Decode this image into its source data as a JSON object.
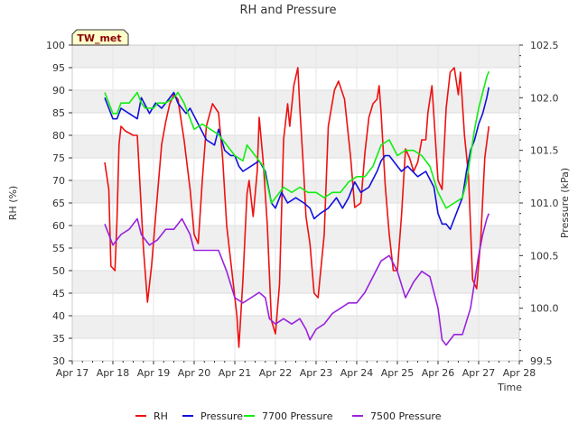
{
  "chart_data": {
    "type": "line",
    "title": "RH and Pressure",
    "badge": "TW_met",
    "xlabel": "Time",
    "ylabel_left": "RH (%)",
    "ylabel_right": "Pressure (kPa)",
    "x_ticks": [
      "Apr 17",
      "Apr 18",
      "Apr 19",
      "Apr 20",
      "Apr 21",
      "Apr 22",
      "Apr 23",
      "Apr 24",
      "Apr 25",
      "Apr 26",
      "Apr 27",
      "Apr 28"
    ],
    "y_left_ticks": [
      "30",
      "35",
      "40",
      "45",
      "50",
      "55",
      "60",
      "65",
      "70",
      "75",
      "80",
      "85",
      "90",
      "95",
      "100"
    ],
    "y_right_ticks": [
      "99.5",
      "100.0",
      "100.5",
      "101.0",
      "101.5",
      "102.0",
      "102.5"
    ],
    "xlim": [
      0,
      11
    ],
    "ylim_left": [
      30,
      100
    ],
    "ylim_right": [
      99.5,
      102.5
    ],
    "grid": true,
    "legend_position": "bottom-center",
    "series": [
      {
        "name": "RH",
        "axis": "left",
        "color": "#ee1111",
        "points": [
          [
            0.8,
            74
          ],
          [
            0.9,
            68
          ],
          [
            0.95,
            51
          ],
          [
            1.05,
            50
          ],
          [
            1.1,
            61
          ],
          [
            1.15,
            78
          ],
          [
            1.2,
            82
          ],
          [
            1.3,
            81
          ],
          [
            1.5,
            80
          ],
          [
            1.6,
            80
          ],
          [
            1.75,
            55
          ],
          [
            1.85,
            43
          ],
          [
            1.95,
            51
          ],
          [
            2.05,
            62
          ],
          [
            2.2,
            78
          ],
          [
            2.3,
            83
          ],
          [
            2.4,
            87
          ],
          [
            2.5,
            89
          ],
          [
            2.6,
            88
          ],
          [
            2.75,
            79
          ],
          [
            2.9,
            68
          ],
          [
            3.0,
            58
          ],
          [
            3.1,
            56
          ],
          [
            3.2,
            70
          ],
          [
            3.3,
            82
          ],
          [
            3.45,
            87
          ],
          [
            3.6,
            85
          ],
          [
            3.7,
            75
          ],
          [
            3.8,
            60
          ],
          [
            3.95,
            48
          ],
          [
            4.05,
            40
          ],
          [
            4.1,
            33
          ],
          [
            4.2,
            48
          ],
          [
            4.3,
            67
          ],
          [
            4.35,
            70
          ],
          [
            4.45,
            62
          ],
          [
            4.55,
            72
          ],
          [
            4.6,
            84
          ],
          [
            4.7,
            74
          ],
          [
            4.8,
            60
          ],
          [
            4.9,
            39
          ],
          [
            5.0,
            36
          ],
          [
            5.1,
            47
          ],
          [
            5.2,
            79
          ],
          [
            5.3,
            87
          ],
          [
            5.35,
            82
          ],
          [
            5.45,
            91
          ],
          [
            5.55,
            95
          ],
          [
            5.6,
            86
          ],
          [
            5.7,
            71
          ],
          [
            5.75,
            62
          ],
          [
            5.85,
            56
          ],
          [
            5.95,
            45
          ],
          [
            6.05,
            44
          ],
          [
            6.2,
            58
          ],
          [
            6.3,
            82
          ],
          [
            6.45,
            90
          ],
          [
            6.55,
            92
          ],
          [
            6.7,
            88
          ],
          [
            6.85,
            75
          ],
          [
            6.95,
            64
          ],
          [
            7.1,
            65
          ],
          [
            7.2,
            76
          ],
          [
            7.3,
            84
          ],
          [
            7.4,
            87
          ],
          [
            7.5,
            88
          ],
          [
            7.55,
            91
          ],
          [
            7.6,
            85
          ],
          [
            7.7,
            69
          ],
          [
            7.8,
            58
          ],
          [
            7.9,
            50
          ],
          [
            8.0,
            50
          ],
          [
            8.1,
            62
          ],
          [
            8.2,
            77
          ],
          [
            8.3,
            75
          ],
          [
            8.4,
            72
          ],
          [
            8.5,
            74
          ],
          [
            8.6,
            79
          ],
          [
            8.7,
            79
          ],
          [
            8.75,
            85
          ],
          [
            8.85,
            91
          ],
          [
            9.0,
            70
          ],
          [
            9.1,
            68
          ],
          [
            9.2,
            86
          ],
          [
            9.3,
            94
          ],
          [
            9.4,
            95
          ],
          [
            9.5,
            89
          ],
          [
            9.55,
            94
          ],
          [
            9.65,
            80
          ],
          [
            9.75,
            71
          ],
          [
            9.85,
            48
          ],
          [
            9.95,
            46
          ],
          [
            10.05,
            57
          ],
          [
            10.15,
            75
          ],
          [
            10.25,
            82
          ]
        ]
      },
      {
        "name": "Pressure",
        "axis": "right",
        "color": "#1111dd",
        "points": [
          [
            0.8,
            102.0
          ],
          [
            0.9,
            101.9
          ],
          [
            1.0,
            101.8
          ],
          [
            1.1,
            101.8
          ],
          [
            1.2,
            101.9
          ],
          [
            1.4,
            101.85
          ],
          [
            1.6,
            101.8
          ],
          [
            1.7,
            102.0
          ],
          [
            1.9,
            101.85
          ],
          [
            2.05,
            101.95
          ],
          [
            2.2,
            101.9
          ],
          [
            2.3,
            101.95
          ],
          [
            2.5,
            102.05
          ],
          [
            2.6,
            101.95
          ],
          [
            2.8,
            101.85
          ],
          [
            2.9,
            101.9
          ],
          [
            3.1,
            101.75
          ],
          [
            3.3,
            101.6
          ],
          [
            3.5,
            101.55
          ],
          [
            3.6,
            101.7
          ],
          [
            3.75,
            101.5
          ],
          [
            3.9,
            101.45
          ],
          [
            4.0,
            101.45
          ],
          [
            4.1,
            101.35
          ],
          [
            4.2,
            101.3
          ],
          [
            4.4,
            101.35
          ],
          [
            4.6,
            101.4
          ],
          [
            4.75,
            101.3
          ],
          [
            4.9,
            101.0
          ],
          [
            5.0,
            100.95
          ],
          [
            5.15,
            101.1
          ],
          [
            5.3,
            101.0
          ],
          [
            5.5,
            101.05
          ],
          [
            5.7,
            101.0
          ],
          [
            5.85,
            100.95
          ],
          [
            5.95,
            100.85
          ],
          [
            6.1,
            100.9
          ],
          [
            6.3,
            100.95
          ],
          [
            6.5,
            101.05
          ],
          [
            6.65,
            100.95
          ],
          [
            6.8,
            101.05
          ],
          [
            6.95,
            101.2
          ],
          [
            7.1,
            101.1
          ],
          [
            7.3,
            101.15
          ],
          [
            7.5,
            101.3
          ],
          [
            7.6,
            101.4
          ],
          [
            7.7,
            101.45
          ],
          [
            7.8,
            101.45
          ],
          [
            8.0,
            101.35
          ],
          [
            8.1,
            101.3
          ],
          [
            8.25,
            101.35
          ],
          [
            8.5,
            101.25
          ],
          [
            8.7,
            101.3
          ],
          [
            8.9,
            101.15
          ],
          [
            9.0,
            100.9
          ],
          [
            9.1,
            100.8
          ],
          [
            9.2,
            100.8
          ],
          [
            9.3,
            100.75
          ],
          [
            9.4,
            100.85
          ],
          [
            9.5,
            100.95
          ],
          [
            9.6,
            101.05
          ],
          [
            9.7,
            101.3
          ],
          [
            9.8,
            101.5
          ],
          [
            9.9,
            101.6
          ],
          [
            10.0,
            101.75
          ],
          [
            10.1,
            101.85
          ],
          [
            10.2,
            102.0
          ],
          [
            10.25,
            102.1
          ]
        ]
      },
      {
        "name": "7700 Pressure",
        "axis": "right",
        "color": "#11ee11",
        "points": [
          [
            0.8,
            102.05
          ],
          [
            0.9,
            101.95
          ],
          [
            1.0,
            101.85
          ],
          [
            1.1,
            101.85
          ],
          [
            1.2,
            101.95
          ],
          [
            1.4,
            101.95
          ],
          [
            1.6,
            102.05
          ],
          [
            1.7,
            101.95
          ],
          [
            1.8,
            101.9
          ],
          [
            2.0,
            101.9
          ],
          [
            2.1,
            101.95
          ],
          [
            2.3,
            101.95
          ],
          [
            2.5,
            102.0
          ],
          [
            2.6,
            102.05
          ],
          [
            2.75,
            101.95
          ],
          [
            2.85,
            101.85
          ],
          [
            3.0,
            101.7
          ],
          [
            3.2,
            101.75
          ],
          [
            3.4,
            101.7
          ],
          [
            3.6,
            101.65
          ],
          [
            3.8,
            101.55
          ],
          [
            4.0,
            101.45
          ],
          [
            4.2,
            101.4
          ],
          [
            4.3,
            101.55
          ],
          [
            4.5,
            101.45
          ],
          [
            4.7,
            101.35
          ],
          [
            4.9,
            101.0
          ],
          [
            5.0,
            101.05
          ],
          [
            5.2,
            101.15
          ],
          [
            5.4,
            101.1
          ],
          [
            5.6,
            101.15
          ],
          [
            5.8,
            101.1
          ],
          [
            6.0,
            101.1
          ],
          [
            6.2,
            101.05
          ],
          [
            6.4,
            101.1
          ],
          [
            6.6,
            101.1
          ],
          [
            6.8,
            101.2
          ],
          [
            7.0,
            101.25
          ],
          [
            7.2,
            101.25
          ],
          [
            7.4,
            101.35
          ],
          [
            7.6,
            101.55
          ],
          [
            7.8,
            101.6
          ],
          [
            8.0,
            101.45
          ],
          [
            8.2,
            101.5
          ],
          [
            8.4,
            101.5
          ],
          [
            8.6,
            101.45
          ],
          [
            8.8,
            101.35
          ],
          [
            9.0,
            101.1
          ],
          [
            9.2,
            100.95
          ],
          [
            9.4,
            101.0
          ],
          [
            9.6,
            101.05
          ],
          [
            9.7,
            101.2
          ],
          [
            9.8,
            101.45
          ],
          [
            9.9,
            101.7
          ],
          [
            10.0,
            101.9
          ],
          [
            10.1,
            102.05
          ],
          [
            10.2,
            102.2
          ],
          [
            10.25,
            102.25
          ]
        ]
      },
      {
        "name": "7500 Pressure",
        "axis": "right",
        "color": "#9922dd",
        "points": [
          [
            0.8,
            100.8
          ],
          [
            0.9,
            100.7
          ],
          [
            1.0,
            100.6
          ],
          [
            1.1,
            100.65
          ],
          [
            1.2,
            100.7
          ],
          [
            1.4,
            100.75
          ],
          [
            1.6,
            100.85
          ],
          [
            1.7,
            100.7
          ],
          [
            1.9,
            100.6
          ],
          [
            2.1,
            100.65
          ],
          [
            2.3,
            100.75
          ],
          [
            2.5,
            100.75
          ],
          [
            2.7,
            100.85
          ],
          [
            2.9,
            100.7
          ],
          [
            3.0,
            100.55
          ],
          [
            3.2,
            100.55
          ],
          [
            3.4,
            100.55
          ],
          [
            3.6,
            100.55
          ],
          [
            3.8,
            100.35
          ],
          [
            4.0,
            100.1
          ],
          [
            4.2,
            100.05
          ],
          [
            4.4,
            100.1
          ],
          [
            4.6,
            100.15
          ],
          [
            4.75,
            100.1
          ],
          [
            4.85,
            99.9
          ],
          [
            5.0,
            99.85
          ],
          [
            5.2,
            99.9
          ],
          [
            5.4,
            99.85
          ],
          [
            5.6,
            99.9
          ],
          [
            5.75,
            99.8
          ],
          [
            5.85,
            99.7
          ],
          [
            6.0,
            99.8
          ],
          [
            6.2,
            99.85
          ],
          [
            6.4,
            99.95
          ],
          [
            6.6,
            100.0
          ],
          [
            6.8,
            100.05
          ],
          [
            7.0,
            100.05
          ],
          [
            7.2,
            100.15
          ],
          [
            7.4,
            100.3
          ],
          [
            7.6,
            100.45
          ],
          [
            7.8,
            100.5
          ],
          [
            8.0,
            100.35
          ],
          [
            8.2,
            100.1
          ],
          [
            8.4,
            100.25
          ],
          [
            8.6,
            100.35
          ],
          [
            8.8,
            100.3
          ],
          [
            9.0,
            100.0
          ],
          [
            9.1,
            99.7
          ],
          [
            9.2,
            99.65
          ],
          [
            9.4,
            99.75
          ],
          [
            9.6,
            99.75
          ],
          [
            9.8,
            100.0
          ],
          [
            9.9,
            100.25
          ],
          [
            10.0,
            100.5
          ],
          [
            10.1,
            100.7
          ],
          [
            10.2,
            100.85
          ],
          [
            10.25,
            100.9
          ]
        ]
      }
    ]
  }
}
